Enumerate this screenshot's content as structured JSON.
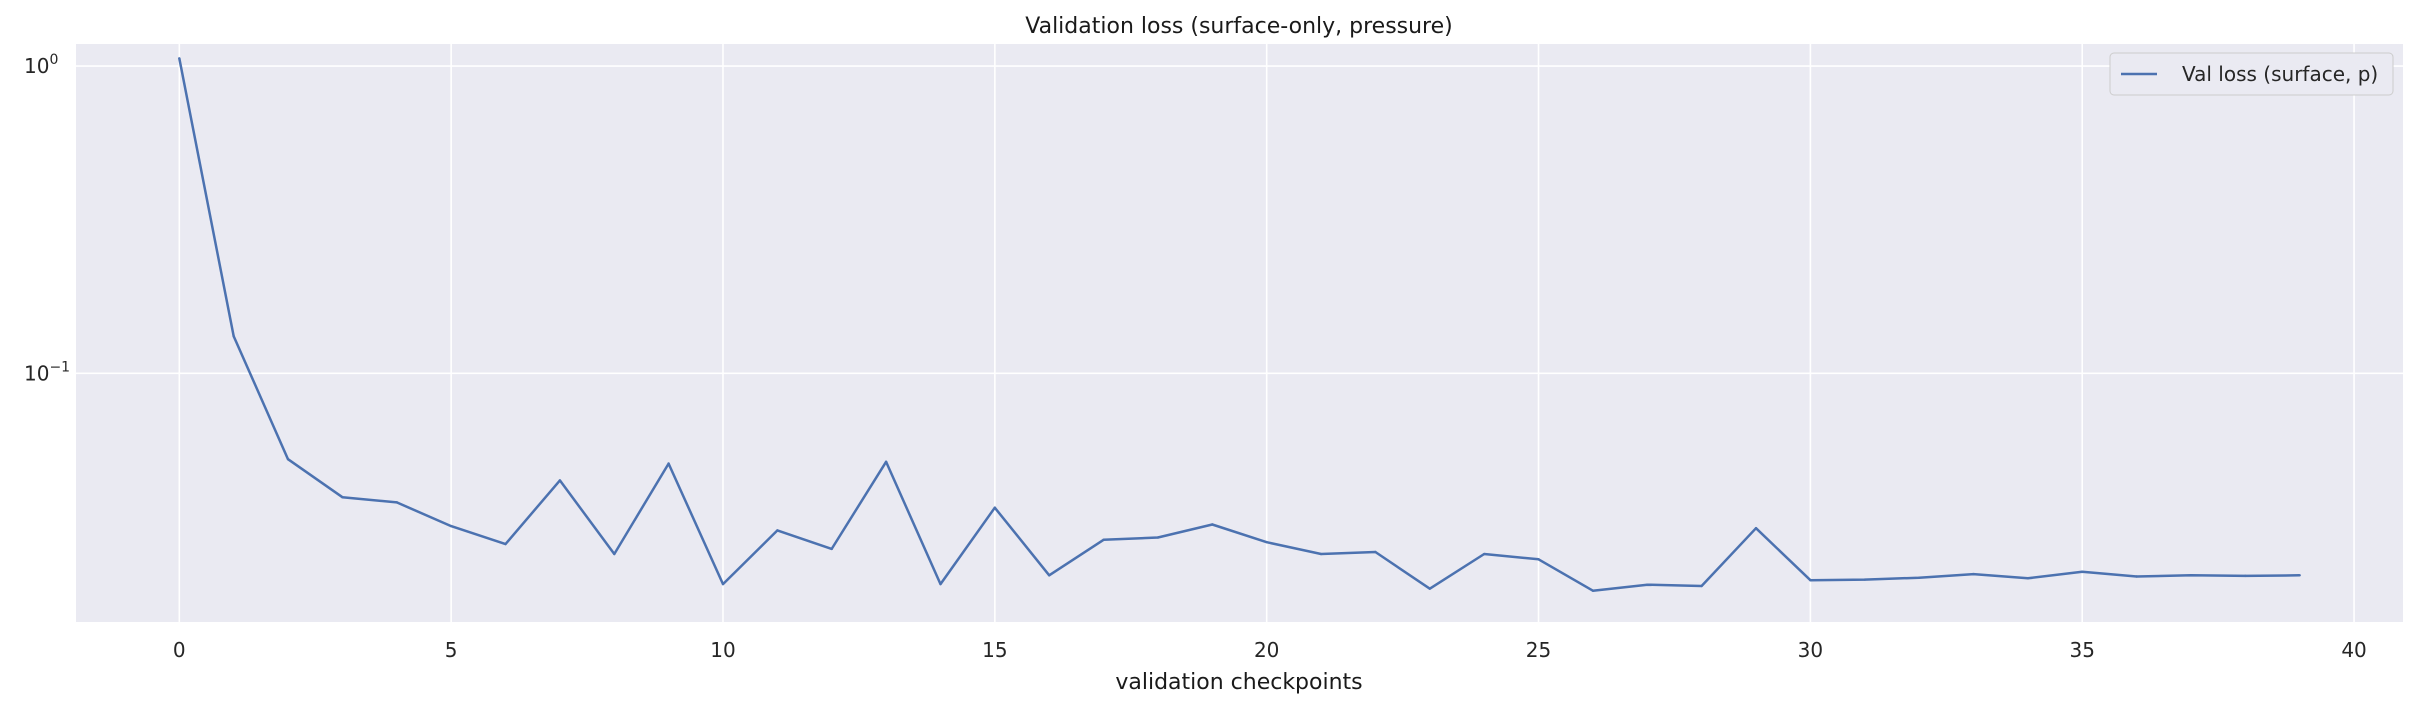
{
  "chart_data": {
    "type": "line",
    "title": "Validation loss (surface-only, pressure)",
    "xlabel": "validation checkpoints",
    "ylabel": "",
    "yscale": "log",
    "xlim": [
      -1.9,
      40.9
    ],
    "ylim": [
      0.0155,
      1.18
    ],
    "xticks": [
      0,
      5,
      10,
      15,
      20,
      25,
      30,
      35,
      40
    ],
    "yticks": [
      {
        "value": 1.0,
        "base": "10",
        "exp": "0"
      },
      {
        "value": 0.1,
        "base": "10",
        "exp": "−1"
      }
    ],
    "grid": true,
    "legend_position": "top-right",
    "series": [
      {
        "name": "Val loss (surface, p)",
        "color": "#4c72b0",
        "x": [
          0,
          1,
          2,
          3,
          4,
          5,
          6,
          7,
          8,
          9,
          10,
          11,
          12,
          13,
          14,
          15,
          16,
          17,
          18,
          19,
          20,
          21,
          22,
          23,
          24,
          25,
          26,
          27,
          28,
          29,
          30,
          31,
          32,
          33,
          34,
          35,
          36,
          37,
          38,
          39
        ],
        "values": [
          1.06,
          0.132,
          0.0525,
          0.0395,
          0.038,
          0.0318,
          0.0278,
          0.0448,
          0.0258,
          0.0508,
          0.0206,
          0.0308,
          0.0268,
          0.0515,
          0.0206,
          0.0365,
          0.022,
          0.0287,
          0.0292,
          0.0322,
          0.0282,
          0.0258,
          0.0262,
          0.0199,
          0.0258,
          0.0248,
          0.0196,
          0.0205,
          0.0203,
          0.0313,
          0.0212,
          0.0213,
          0.0216,
          0.0222,
          0.0215,
          0.0226,
          0.0218,
          0.022,
          0.0219,
          0.022
        ]
      }
    ]
  }
}
